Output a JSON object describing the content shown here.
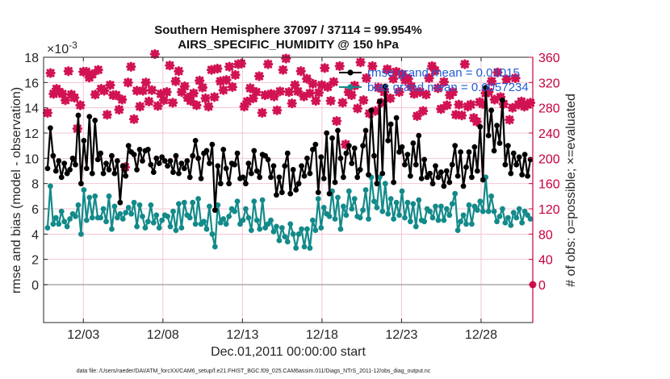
{
  "chart_data": {
    "type": "line",
    "title_line1": "Southern Hemisphere 37097 / 37114 = 99.954%",
    "title_line2": "AIRS_SPECIFIC_HUMIDITY @ 150 hPa",
    "xlabel": "Dec.01,2011 00:00:00 start",
    "ylabel_left": "rmse and bias (model - observation)",
    "ylabel_right": "# of obs: o=possible; ×=evaluated",
    "y_exponent": "×10",
    "y_exponent_power": "-3",
    "footnote": "data file: /Users/raeder/DAI/ATM_forcXX/CAM6_setup/f.e21.FHIST_BGC.f09_025.CAM6assim.011/Diags_NTrS_2011-12/obs_diag_output.nc",
    "xlim": [
      0.5,
      31.25
    ],
    "ylim_left": [
      -3,
      18
    ],
    "ylim_right": [
      -60,
      360
    ],
    "grid": true,
    "legend_position": "top-right",
    "x_ticks": [
      {
        "value": 3,
        "label": "12/03"
      },
      {
        "value": 8,
        "label": "12/08"
      },
      {
        "value": 13,
        "label": "12/13"
      },
      {
        "value": 18,
        "label": "12/18"
      },
      {
        "value": 23,
        "label": "12/23"
      },
      {
        "value": 28,
        "label": "12/28"
      }
    ],
    "y_ticks_left": [
      0,
      2,
      4,
      6,
      8,
      10,
      12,
      14,
      16,
      18
    ],
    "y_ticks_right": [
      0,
      40,
      80,
      120,
      160,
      200,
      240,
      280,
      320,
      360
    ],
    "colors": {
      "rmse": "#000000",
      "bias": "#138a8a",
      "obs": "#d11352",
      "right_axis": "#c8003c",
      "zero_line": "#aaaaaa",
      "grid": "#f2c6d4"
    },
    "series": [
      {
        "name": "rmse grand mean = 0.01015",
        "key": "rmse",
        "values": [
          9.2,
          12.4,
          10.2,
          9.0,
          9.8,
          8.5,
          9.6,
          8.8,
          9.1,
          10.0,
          9.5,
          13.4,
          8.0,
          11.4,
          9.2,
          13.3,
          8.8,
          13.0,
          9.9,
          10.4,
          8.8,
          9.6,
          9.1,
          10.2,
          8.8,
          9.8,
          6.5,
          9.4,
          8.6,
          11.0,
          10.5,
          10.3,
          9.1,
          10.7,
          9.8,
          10.6,
          10.7,
          9.5,
          8.9,
          10.0,
          9.6,
          10.1,
          9.8,
          9.4,
          9.8,
          8.9,
          10.2,
          8.8,
          9.6,
          9.2,
          9.8,
          8.5,
          10.2,
          11.4,
          10.0,
          8.4,
          10.4,
          10.6,
          9.6,
          11.1,
          5.9,
          9.4,
          8.0,
          10.7,
          9.2,
          8.0,
          9.6,
          9.5,
          10.4,
          8.4,
          8.5,
          8.0,
          9.6,
          8.8,
          10.6,
          9.0,
          8.5,
          10.3,
          10.2,
          9.9,
          8.5,
          9.4,
          7.1,
          8.5,
          7.3,
          9.4,
          10.4,
          7.2,
          9.1,
          7.5,
          8.0,
          9.4,
          8.6,
          10.0,
          8.8,
          10.7,
          11.1,
          7.3,
          10.1,
          8.4,
          12.0,
          7.2,
          11.6,
          8.1,
          12.2,
          10.0,
          8.5,
          10.4,
          11.0,
          9.6,
          10.8,
          8.5,
          9.1,
          11.0,
          12.2,
          8.7,
          13.8,
          10.2,
          8.0,
          14.5,
          8.8,
          15.7,
          11.4,
          12.7,
          8.1,
          13.2,
          10.5,
          10.9,
          9.5,
          10.3,
          8.6,
          11.2,
          9.5,
          11.8,
          8.4,
          9.9,
          8.5,
          8.8,
          8.0,
          9.4,
          8.5,
          8.9,
          7.8,
          9.0,
          8.1,
          9.5,
          11.0,
          8.6,
          10.5,
          7.8,
          9.3,
          10.5,
          8.5,
          10.9,
          9.0,
          12.5,
          8.3,
          15.6,
          11.8,
          13.8,
          10.6,
          12.6,
          11.2,
          14.6,
          9.5,
          11.0,
          8.8,
          10.4,
          9.5,
          10.1,
          8.7,
          10.3,
          8.6,
          9.9
        ]
      },
      {
        "name": "bias grand mean = 0.0057234",
        "key": "bias",
        "values": [
          4.5,
          7.8,
          4.8,
          5.3,
          4.8,
          5.8,
          5.0,
          4.6,
          5.2,
          5.6,
          5.4,
          6.3,
          4.0,
          7.5,
          5.1,
          6.9,
          5.3,
          7.0,
          5.3,
          5.3,
          6.0,
          5.0,
          7.0,
          4.4,
          6.2,
          5.3,
          5.6,
          5.2,
          5.7,
          6.1,
          5.6,
          6.5,
          4.6,
          6.3,
          5.4,
          4.5,
          5.0,
          6.3,
          4.9,
          5.5,
          4.5,
          5.1,
          5.5,
          5.4,
          4.6,
          5.8,
          4.3,
          6.4,
          4.5,
          6.5,
          5.5,
          5.3,
          6.5,
          4.8,
          6.8,
          4.8,
          5.0,
          4.4,
          6.2,
          4.0,
          3.0,
          6.3,
          4.9,
          5.2,
          4.8,
          5.4,
          6.0,
          5.8,
          6.6,
          4.8,
          5.1,
          6.0,
          5.3,
          4.3,
          6.6,
          5.1,
          4.4,
          6.7,
          4.5,
          4.8,
          5.1,
          4.2,
          4.6,
          3.5,
          4.5,
          3.8,
          3.4,
          4.8,
          4.0,
          2.9,
          4.0,
          4.4,
          3.0,
          4.4,
          2.9,
          5.1,
          4.3,
          6.8,
          4.5,
          6.1,
          5.6,
          5.4,
          7.4,
          5.2,
          6.9,
          4.4,
          6.2,
          5.5,
          7.4,
          6.0,
          6.8,
          5.4,
          5.3,
          5.9,
          7.5,
          5.2,
          8.5,
          6.6,
          6.1,
          8.5,
          5.8,
          8.0,
          5.6,
          6.8,
          5.2,
          6.5,
          5.5,
          7.4,
          5.3,
          6.5,
          5.0,
          6.4,
          4.6,
          6.7,
          5.1,
          5.0,
          6.0,
          5.8,
          5.3,
          6.2,
          5.1,
          6.2,
          5.1,
          6.0,
          5.5,
          6.4,
          7.2,
          4.3,
          5.0,
          5.5,
          4.8,
          6.3,
          4.8,
          6.2,
          5.9,
          6.6,
          5.8,
          8.5,
          5.8,
          7.0,
          5.8,
          5.0,
          5.4,
          6.0,
          4.9,
          5.3,
          4.7,
          5.7,
          5.3,
          6.0,
          4.9,
          5.8,
          5.5,
          5.2
        ]
      },
      {
        "name": "obs possible",
        "key": "obs_possible",
        "values": [
          0
        ]
      },
      {
        "name": "obs evaluated",
        "key": "obs_evaluated",
        "values": [
          272,
          335,
          302,
          310,
          305,
          302,
          292,
          338,
          301,
          296,
          247,
          284,
          337,
          337,
          328,
          333,
          301,
          340,
          310,
          307,
          269,
          316,
          300,
          300,
          277,
          293,
          186,
          320,
          345,
          262,
          307,
          282,
          307,
          320,
          290,
          308,
          365,
          283,
          302,
          292,
          305,
          347,
          288,
          322,
          338,
          305,
          314,
          296,
          291,
          303,
          284,
          323,
          312,
          295,
          282,
          340,
          297,
          342,
          322,
          308,
          324,
          345,
          313,
          332,
          349,
          350,
          282,
          290,
          311,
          295,
          305,
          330,
          272,
          300,
          349,
          302,
          298,
          276,
          306,
          340,
          358,
          305,
          287,
          316,
          306,
          338,
          298,
          326,
          303,
          318,
          291,
          304,
          316,
          343,
          313,
          291,
          321,
          259,
          346,
          288,
          222,
          305,
          300,
          315,
          279,
          352,
          292,
          327,
          271,
          346,
          275,
          312,
          288,
          305,
          341,
          295,
          326,
          337,
          305,
          333,
          324,
          326,
          314,
          302,
          267,
          305,
          275,
          301,
          327,
          346,
          339,
          311,
          278,
          321,
          284,
          300,
          305,
          269,
          285,
          268,
          349,
          282,
          285,
          264,
          258,
          289,
          286,
          303,
          305,
          322,
          293,
          336,
          297,
          286,
          325,
          261,
          280,
          327,
          285,
          290,
          282,
          285,
          288
        ]
      }
    ]
  }
}
